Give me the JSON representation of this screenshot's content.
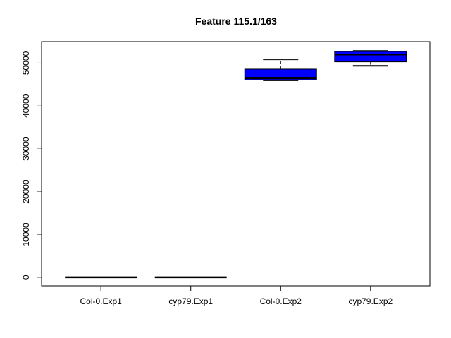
{
  "chart_data": {
    "type": "boxplot",
    "title": "Feature  115.1/163",
    "xlabel": "",
    "ylabel": "",
    "ylim": [
      -2000,
      55000
    ],
    "yticks": [
      0,
      10000,
      20000,
      30000,
      40000,
      50000
    ],
    "grid": false,
    "categories": [
      "Col-0.Exp1",
      "cyp79.Exp1",
      "Col-0.Exp2",
      "cyp79.Exp2"
    ],
    "boxes": [
      {
        "category": "Col-0.Exp1",
        "whisker_low": 0,
        "q1": 0,
        "median": 0,
        "q3": 0,
        "whisker_high": 0,
        "color": "#0000ff"
      },
      {
        "category": "cyp79.Exp1",
        "whisker_low": 0,
        "q1": 0,
        "median": 0,
        "q3": 0,
        "whisker_high": 0,
        "color": "#0000ff"
      },
      {
        "category": "Col-0.Exp2",
        "whisker_low": 45900,
        "q1": 46100,
        "median": 46500,
        "q3": 48600,
        "whisker_high": 50800,
        "color": "#0000ff"
      },
      {
        "category": "cyp79.Exp2",
        "whisker_low": 49300,
        "q1": 50300,
        "median": 52000,
        "q3": 52700,
        "whisker_high": 52900,
        "color": "#0000ff"
      }
    ]
  }
}
